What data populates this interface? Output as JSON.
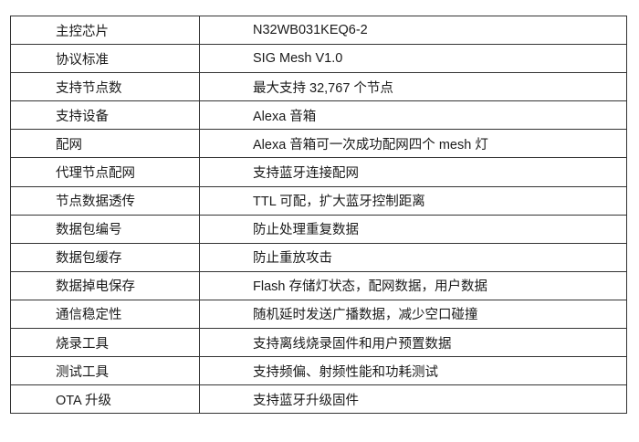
{
  "spec_table": {
    "rows": [
      {
        "label": "主控芯片",
        "value": "N32WB031KEQ6-2"
      },
      {
        "label": "协议标准",
        "value": "SIG Mesh V1.0"
      },
      {
        "label": "支持节点数",
        "value": "最大支持 32,767 个节点"
      },
      {
        "label": "支持设备",
        "value": "Alexa 音箱"
      },
      {
        "label": "配网",
        "value": "Alexa 音箱可一次成功配网四个 mesh 灯"
      },
      {
        "label": "代理节点配网",
        "value": "支持蓝牙连接配网"
      },
      {
        "label": "节点数据透传",
        "value": "TTL 可配，扩大蓝牙控制距离"
      },
      {
        "label": "数据包编号",
        "value": "防止处理重复数据"
      },
      {
        "label": "数据包缓存",
        "value": "防止重放攻击"
      },
      {
        "label": "数据掉电保存",
        "value": "Flash 存储灯状态，配网数据，用户数据"
      },
      {
        "label": "通信稳定性",
        "value": "随机延时发送广播数据，减少空口碰撞"
      },
      {
        "label": "烧录工具",
        "value": "支持离线烧录固件和用户预置数据"
      },
      {
        "label": "测试工具",
        "value": "支持频偏、射频性能和功耗测试"
      },
      {
        "label": "OTA 升级",
        "value": "支持蓝牙升级固件"
      }
    ]
  }
}
